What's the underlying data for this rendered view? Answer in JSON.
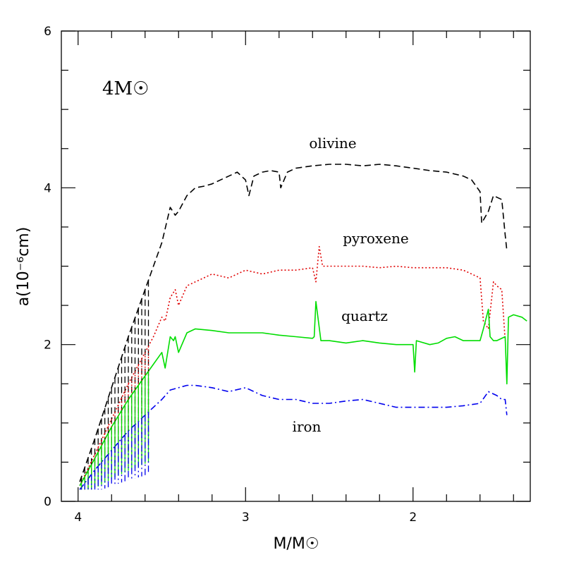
{
  "chart_data": {
    "type": "line",
    "title": "",
    "annotation": "4M☉",
    "xlabel": "M/M☉",
    "ylabel": "a(10⁻⁶cm)",
    "xlim": [
      4.1,
      1.3
    ],
    "ylim": [
      0,
      6
    ],
    "x_reversed": true,
    "x_ticks": [
      4,
      3,
      2
    ],
    "x_tick_labels": [
      "4",
      "3",
      "2"
    ],
    "y_ticks": [
      0,
      2,
      4,
      6
    ],
    "y_tick_labels": [
      "0",
      "2",
      "4",
      "6"
    ],
    "grid": false,
    "legend": "none",
    "series": [
      {
        "name": "olivine",
        "color": "#000000",
        "dash": "dashed",
        "x": [
          3.99,
          3.9,
          3.8,
          3.7,
          3.6,
          3.55,
          3.5,
          3.45,
          3.42,
          3.4,
          3.35,
          3.3,
          3.25,
          3.2,
          3.15,
          3.1,
          3.05,
          3.0,
          2.98,
          2.95,
          2.9,
          2.85,
          2.8,
          2.79,
          2.75,
          2.7,
          2.6,
          2.5,
          2.4,
          2.3,
          2.2,
          2.1,
          2.0,
          1.9,
          1.8,
          1.7,
          1.65,
          1.6,
          1.59,
          1.55,
          1.52,
          1.5,
          1.47,
          1.45,
          1.44
        ],
        "y": [
          0.25,
          0.8,
          1.45,
          2.1,
          2.7,
          3.0,
          3.3,
          3.75,
          3.65,
          3.7,
          3.9,
          4.0,
          4.02,
          4.05,
          4.1,
          4.15,
          4.2,
          4.1,
          3.9,
          4.15,
          4.2,
          4.22,
          4.2,
          4.0,
          4.2,
          4.25,
          4.28,
          4.3,
          4.3,
          4.28,
          4.3,
          4.28,
          4.25,
          4.22,
          4.2,
          4.15,
          4.1,
          3.95,
          3.55,
          3.7,
          3.9,
          3.88,
          3.85,
          3.4,
          3.2
        ]
      },
      {
        "name": "pyroxene",
        "color": "#e00000",
        "dash": "dotted",
        "x": [
          3.99,
          3.9,
          3.8,
          3.7,
          3.6,
          3.55,
          3.5,
          3.48,
          3.45,
          3.42,
          3.4,
          3.35,
          3.3,
          3.25,
          3.2,
          3.1,
          3.0,
          2.9,
          2.8,
          2.7,
          2.6,
          2.58,
          2.56,
          2.54,
          2.5,
          2.4,
          2.3,
          2.2,
          2.1,
          2.0,
          1.9,
          1.8,
          1.7,
          1.65,
          1.6,
          1.58,
          1.55,
          1.52,
          1.5,
          1.47,
          1.45
        ],
        "y": [
          0.2,
          0.6,
          1.05,
          1.5,
          1.9,
          2.1,
          2.35,
          2.3,
          2.6,
          2.7,
          2.5,
          2.75,
          2.8,
          2.85,
          2.9,
          2.85,
          2.95,
          2.9,
          2.95,
          2.95,
          2.98,
          2.8,
          3.25,
          3.0,
          3.0,
          3.0,
          3.0,
          2.98,
          3.0,
          2.98,
          2.98,
          2.98,
          2.95,
          2.9,
          2.85,
          2.3,
          2.2,
          2.8,
          2.75,
          2.7,
          2.05
        ]
      },
      {
        "name": "quartz",
        "color": "#00dd00",
        "dash": "solid",
        "x": [
          3.99,
          3.9,
          3.8,
          3.7,
          3.6,
          3.55,
          3.5,
          3.48,
          3.45,
          3.43,
          3.42,
          3.4,
          3.35,
          3.3,
          3.2,
          3.1,
          3.0,
          2.9,
          2.8,
          2.7,
          2.6,
          2.59,
          2.58,
          2.55,
          2.5,
          2.4,
          2.3,
          2.2,
          2.1,
          2.0,
          1.99,
          1.98,
          1.9,
          1.85,
          1.8,
          1.75,
          1.7,
          1.6,
          1.58,
          1.55,
          1.54,
          1.52,
          1.5,
          1.45,
          1.44,
          1.43,
          1.4,
          1.35,
          1.32
        ],
        "y": [
          0.2,
          0.55,
          0.95,
          1.3,
          1.6,
          1.75,
          1.9,
          1.7,
          2.1,
          2.05,
          2.1,
          1.9,
          2.15,
          2.2,
          2.18,
          2.15,
          2.15,
          2.15,
          2.12,
          2.1,
          2.08,
          2.1,
          2.55,
          2.05,
          2.05,
          2.02,
          2.05,
          2.02,
          2.0,
          2.0,
          1.65,
          2.05,
          2.0,
          2.02,
          2.08,
          2.1,
          2.05,
          2.05,
          2.2,
          2.45,
          2.1,
          2.05,
          2.05,
          2.1,
          1.5,
          2.35,
          2.38,
          2.35,
          2.3
        ]
      },
      {
        "name": "iron",
        "color": "#0000ee",
        "dash": "dashdot",
        "x": [
          3.99,
          3.9,
          3.8,
          3.7,
          3.6,
          3.55,
          3.5,
          3.45,
          3.4,
          3.35,
          3.3,
          3.2,
          3.1,
          3.0,
          2.9,
          2.8,
          2.7,
          2.6,
          2.5,
          2.4,
          2.3,
          2.2,
          2.1,
          2.0,
          1.9,
          1.8,
          1.7,
          1.6,
          1.55,
          1.5,
          1.47,
          1.45,
          1.44
        ],
        "y": [
          0.15,
          0.4,
          0.65,
          0.9,
          1.1,
          1.2,
          1.3,
          1.42,
          1.45,
          1.48,
          1.48,
          1.45,
          1.4,
          1.45,
          1.35,
          1.3,
          1.3,
          1.25,
          1.25,
          1.28,
          1.3,
          1.25,
          1.2,
          1.2,
          1.2,
          1.2,
          1.22,
          1.25,
          1.4,
          1.35,
          1.3,
          1.3,
          1.1
        ]
      }
    ]
  }
}
